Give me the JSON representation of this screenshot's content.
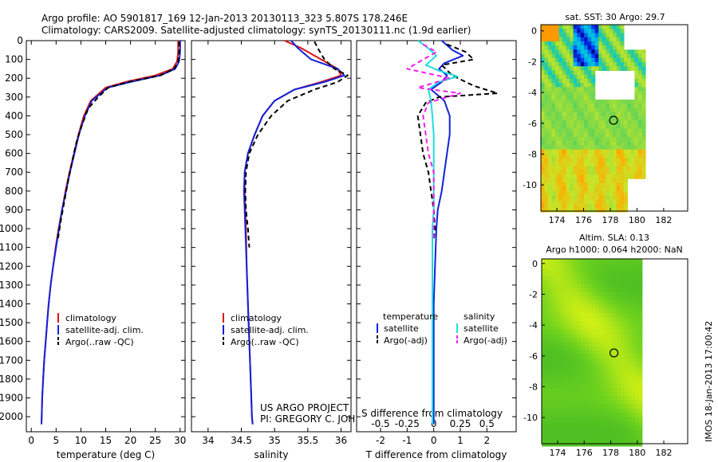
{
  "header": {
    "line1": "Argo profile: AO 5901817_169 12-Jan-2013 20130113_323 5.807S 178.246E",
    "line2": "Climatology: CARS2009. Satellite-adjusted climatology: synTS_20130111.nc (1.9d earlier)"
  },
  "side_label": "IMOS 18-Jan-2013 17:00:42",
  "colors": {
    "red": "#dd1111",
    "blue": "#1122dd",
    "black": "#000000",
    "cyan": "#22dddd",
    "magenta": "#ee22ee"
  },
  "chart_data": [
    {
      "id": "temperature",
      "type": "line",
      "xlabel": "temperature (deg C)",
      "xlim": [
        -1,
        31
      ],
      "xticks": [
        "0",
        "5",
        "10",
        "15",
        "20",
        "25",
        "30"
      ],
      "ylim": [
        0,
        2080
      ],
      "yticks": [
        "0",
        "100",
        "200",
        "300",
        "400",
        "500",
        "600",
        "700",
        "800",
        "900",
        "1000",
        "1100",
        "1200",
        "1300",
        "1400",
        "1500",
        "1600",
        "1700",
        "1800",
        "1900",
        "2000"
      ],
      "legend": [
        "climatology",
        "satellite-adj. clim.",
        "Argo(..raw -QC)"
      ],
      "series": [
        {
          "name": "climatology",
          "color": "red",
          "dash": false,
          "points": [
            [
              29.6,
              0
            ],
            [
              29.6,
              60
            ],
            [
              29.4,
              110
            ],
            [
              28.5,
              150
            ],
            [
              25,
              185
            ],
            [
              19,
              220
            ],
            [
              15,
              250
            ],
            [
              12,
              320
            ],
            [
              10.6,
              400
            ],
            [
              9.5,
              500
            ],
            [
              8.6,
              600
            ],
            [
              7.7,
              700
            ],
            [
              6.9,
              800
            ],
            [
              6.2,
              900
            ],
            [
              5.5,
              1000
            ],
            [
              4.9,
              1100
            ],
            [
              4.4,
              1200
            ],
            [
              3.9,
              1300
            ],
            [
              3.5,
              1400
            ],
            [
              3.2,
              1500
            ],
            [
              2.9,
              1600
            ],
            [
              2.6,
              1700
            ],
            [
              2.4,
              1800
            ],
            [
              2.2,
              1900
            ],
            [
              2.1,
              2000
            ],
            [
              2.05,
              2040
            ]
          ]
        },
        {
          "name": "satellite-adj. clim.",
          "color": "blue",
          "dash": false,
          "points": [
            [
              30.0,
              0
            ],
            [
              30.0,
              60
            ],
            [
              29.8,
              110
            ],
            [
              29,
              150
            ],
            [
              26,
              185
            ],
            [
              20,
              220
            ],
            [
              15.4,
              250
            ],
            [
              12.2,
              320
            ],
            [
              10.8,
              400
            ],
            [
              9.6,
              500
            ],
            [
              8.7,
              600
            ],
            [
              7.8,
              700
            ],
            [
              7.0,
              800
            ],
            [
              6.2,
              900
            ],
            [
              5.6,
              1000
            ],
            [
              5.0,
              1100
            ],
            [
              4.4,
              1200
            ],
            [
              3.9,
              1300
            ],
            [
              3.5,
              1400
            ],
            [
              3.2,
              1500
            ],
            [
              2.9,
              1600
            ],
            [
              2.6,
              1700
            ],
            [
              2.4,
              1800
            ],
            [
              2.2,
              1900
            ],
            [
              2.1,
              2000
            ],
            [
              2.05,
              2040
            ]
          ]
        },
        {
          "name": "Argo(..raw -QC)",
          "color": "black",
          "dash": true,
          "points": [
            [
              29.8,
              5
            ],
            [
              29.8,
              60
            ],
            [
              29.6,
              110
            ],
            [
              28.8,
              150
            ],
            [
              26,
              185
            ],
            [
              19.5,
              220
            ],
            [
              15.5,
              250
            ],
            [
              13.5,
              300
            ],
            [
              11.5,
              360
            ],
            [
              10.2,
              450
            ],
            [
              9.0,
              550
            ],
            [
              8.2,
              650
            ],
            [
              7.4,
              750
            ],
            [
              6.7,
              850
            ],
            [
              6.0,
              950
            ],
            [
              5.4,
              1050
            ]
          ]
        }
      ]
    },
    {
      "id": "salinity",
      "type": "line",
      "xlabel": "salinity",
      "xlim": [
        33.75,
        36.15
      ],
      "xticks": [
        "34",
        "34.5",
        "35",
        "35.5",
        "36"
      ],
      "ylim": [
        0,
        2080
      ],
      "legend": [
        "climatology",
        "satellite-adj. clim.",
        "Argo(..raw -QC)"
      ],
      "annotation_lines": [
        "US ARGO PROJECT",
        "PI: GREGORY C. JOHNSON"
      ],
      "series": [
        {
          "name": "climatology",
          "color": "red",
          "dash": false,
          "points": [
            [
              35.15,
              0
            ],
            [
              35.4,
              40
            ],
            [
              35.7,
              100
            ],
            [
              35.95,
              150
            ],
            [
              36.0,
              185
            ],
            [
              35.7,
              220
            ],
            [
              35.3,
              260
            ],
            [
              35.0,
              320
            ],
            [
              34.82,
              400
            ],
            [
              34.7,
              500
            ],
            [
              34.6,
              600
            ],
            [
              34.55,
              700
            ],
            [
              34.55,
              800
            ],
            [
              34.56,
              900
            ],
            [
              34.57,
              1000
            ],
            [
              34.58,
              1200
            ],
            [
              34.6,
              1400
            ],
            [
              34.62,
              1600
            ],
            [
              34.64,
              1800
            ],
            [
              34.66,
              2000
            ],
            [
              34.67,
              2040
            ]
          ]
        },
        {
          "name": "satellite-adj. clim.",
          "color": "blue",
          "dash": false,
          "points": [
            [
              35.25,
              0
            ],
            [
              35.35,
              40
            ],
            [
              35.55,
              100
            ],
            [
              35.95,
              150
            ],
            [
              36.05,
              185
            ],
            [
              35.75,
              220
            ],
            [
              35.3,
              260
            ],
            [
              35.0,
              320
            ],
            [
              34.82,
              400
            ],
            [
              34.7,
              500
            ],
            [
              34.6,
              600
            ],
            [
              34.55,
              700
            ],
            [
              34.54,
              800
            ],
            [
              34.55,
              900
            ],
            [
              34.56,
              1000
            ],
            [
              34.58,
              1200
            ],
            [
              34.6,
              1400
            ],
            [
              34.62,
              1600
            ],
            [
              34.64,
              1800
            ],
            [
              34.66,
              2000
            ],
            [
              34.67,
              2040
            ]
          ]
        },
        {
          "name": "Argo(..raw -QC)",
          "color": "black",
          "dash": true,
          "points": [
            [
              35.6,
              5
            ],
            [
              35.65,
              40
            ],
            [
              35.75,
              100
            ],
            [
              35.9,
              150
            ],
            [
              36.1,
              185
            ],
            [
              35.95,
              220
            ],
            [
              35.6,
              260
            ],
            [
              35.2,
              320
            ],
            [
              34.95,
              400
            ],
            [
              34.75,
              500
            ],
            [
              34.62,
              600
            ],
            [
              34.57,
              700
            ],
            [
              34.56,
              800
            ],
            [
              34.57,
              900
            ],
            [
              34.6,
              1000
            ],
            [
              34.62,
              1100
            ]
          ]
        }
      ]
    },
    {
      "id": "difference",
      "type": "line",
      "xlabel": "T difference from climatology",
      "top_axis_label": "S difference from climatology",
      "xlim": [
        -2.9,
        3.1
      ],
      "xticks": [
        "-2",
        "-1",
        "0",
        "1",
        "2"
      ],
      "top_ticks": [
        "-0.5",
        "-0.25",
        "0",
        "0.25",
        "0.5"
      ],
      "ylim": [
        0,
        2080
      ],
      "legend_headers": [
        "temperature",
        "salinity"
      ],
      "legend": [
        "satellite",
        "Argo(-adj)",
        "satellite",
        "Argo(-adj)"
      ],
      "series": [
        {
          "name": "T satellite",
          "color": "blue",
          "dash": false,
          "points": [
            [
              0.3,
              0
            ],
            [
              0.7,
              50
            ],
            [
              1.1,
              80
            ],
            [
              0.4,
              120
            ],
            [
              0.2,
              150
            ],
            [
              0.5,
              185
            ],
            [
              0.3,
              220
            ],
            [
              -0.1,
              260
            ],
            [
              0.4,
              320
            ],
            [
              0.6,
              400
            ],
            [
              0.6,
              500
            ],
            [
              0.5,
              600
            ],
            [
              0.4,
              700
            ],
            [
              0.3,
              800
            ],
            [
              0.15,
              900
            ],
            [
              0.1,
              1000
            ],
            [
              0.05,
              1200
            ],
            [
              0,
              1400
            ],
            [
              0,
              2040
            ]
          ]
        },
        {
          "name": "T Argo(-adj)",
          "color": "black",
          "dash": true,
          "points": [
            [
              0.5,
              20
            ],
            [
              1.2,
              60
            ],
            [
              1.5,
              100
            ],
            [
              0.3,
              130
            ],
            [
              0.7,
              185
            ],
            [
              1.5,
              240
            ],
            [
              2.4,
              280
            ],
            [
              0.2,
              300
            ],
            [
              -0.3,
              330
            ],
            [
              -0.6,
              400
            ],
            [
              -0.5,
              500
            ],
            [
              -0.4,
              600
            ],
            [
              -0.2,
              700
            ],
            [
              -0.1,
              800
            ],
            [
              0.0,
              900
            ],
            [
              0.05,
              1000
            ],
            [
              0.0,
              1060
            ]
          ]
        },
        {
          "name": "S satellite",
          "color": "cyan",
          "dash": false,
          "points": [
            [
              -0.6,
              0
            ],
            [
              -0.3,
              30
            ],
            [
              0.1,
              80
            ],
            [
              -0.3,
              130
            ],
            [
              0.2,
              160
            ],
            [
              0.9,
              190
            ],
            [
              0.2,
              220
            ],
            [
              -0.2,
              260
            ],
            [
              -0.1,
              320
            ],
            [
              -0.05,
              400
            ],
            [
              0.0,
              500
            ],
            [
              0.0,
              700
            ],
            [
              0.0,
              900
            ],
            [
              -0.05,
              1000
            ],
            [
              -0.05,
              1400
            ],
            [
              -0.05,
              2040
            ]
          ]
        },
        {
          "name": "S Argo(-adj)",
          "color": "magenta",
          "dash": true,
          "points": [
            [
              -0.4,
              20
            ],
            [
              0.1,
              60
            ],
            [
              -1.0,
              150
            ],
            [
              0.6,
              200
            ],
            [
              -0.6,
              250
            ],
            [
              1.0,
              280
            ],
            [
              -0.2,
              330
            ],
            [
              -0.4,
              400
            ],
            [
              -0.3,
              500
            ],
            [
              -0.2,
              600
            ],
            [
              0.0,
              700
            ],
            [
              0.0,
              800
            ],
            [
              0.0,
              900
            ],
            [
              0.0,
              1000
            ],
            [
              0.0,
              1060
            ]
          ]
        }
      ]
    },
    {
      "id": "sst-map",
      "type": "heatmap",
      "title": "sat. SST: 30 Argo: 29.7",
      "xlim": [
        172.8,
        183.8
      ],
      "ylim": [
        -11.7,
        0.4
      ],
      "xticks": [
        "174",
        "176",
        "178",
        "180",
        "182"
      ],
      "yticks": [
        "0",
        "-2",
        "-4",
        "-6",
        "-8",
        "-10"
      ],
      "profile_marker": {
        "lon": 178.246,
        "lat": -5.807
      },
      "data_extent": {
        "lon": [
          172.8,
          180.6
        ],
        "lat": [
          -11.7,
          0.4
        ]
      }
    },
    {
      "id": "sla-map",
      "type": "heatmap",
      "title_lines": [
        "Altim. SLA: 0.13",
        "Argo h1000: 0.064 h2000: NaN"
      ],
      "xlim": [
        172.8,
        183.8
      ],
      "ylim": [
        -11.7,
        0.3
      ],
      "xticks": [
        "174",
        "176",
        "178",
        "180",
        "182"
      ],
      "yticks": [
        "0",
        "-2",
        "-4",
        "-6",
        "-8",
        "-10"
      ],
      "profile_marker": {
        "lon": 178.246,
        "lat": -5.807
      },
      "data_extent": {
        "lon": [
          172.8,
          180.2
        ],
        "lat": [
          -11.7,
          0.3
        ]
      }
    }
  ]
}
